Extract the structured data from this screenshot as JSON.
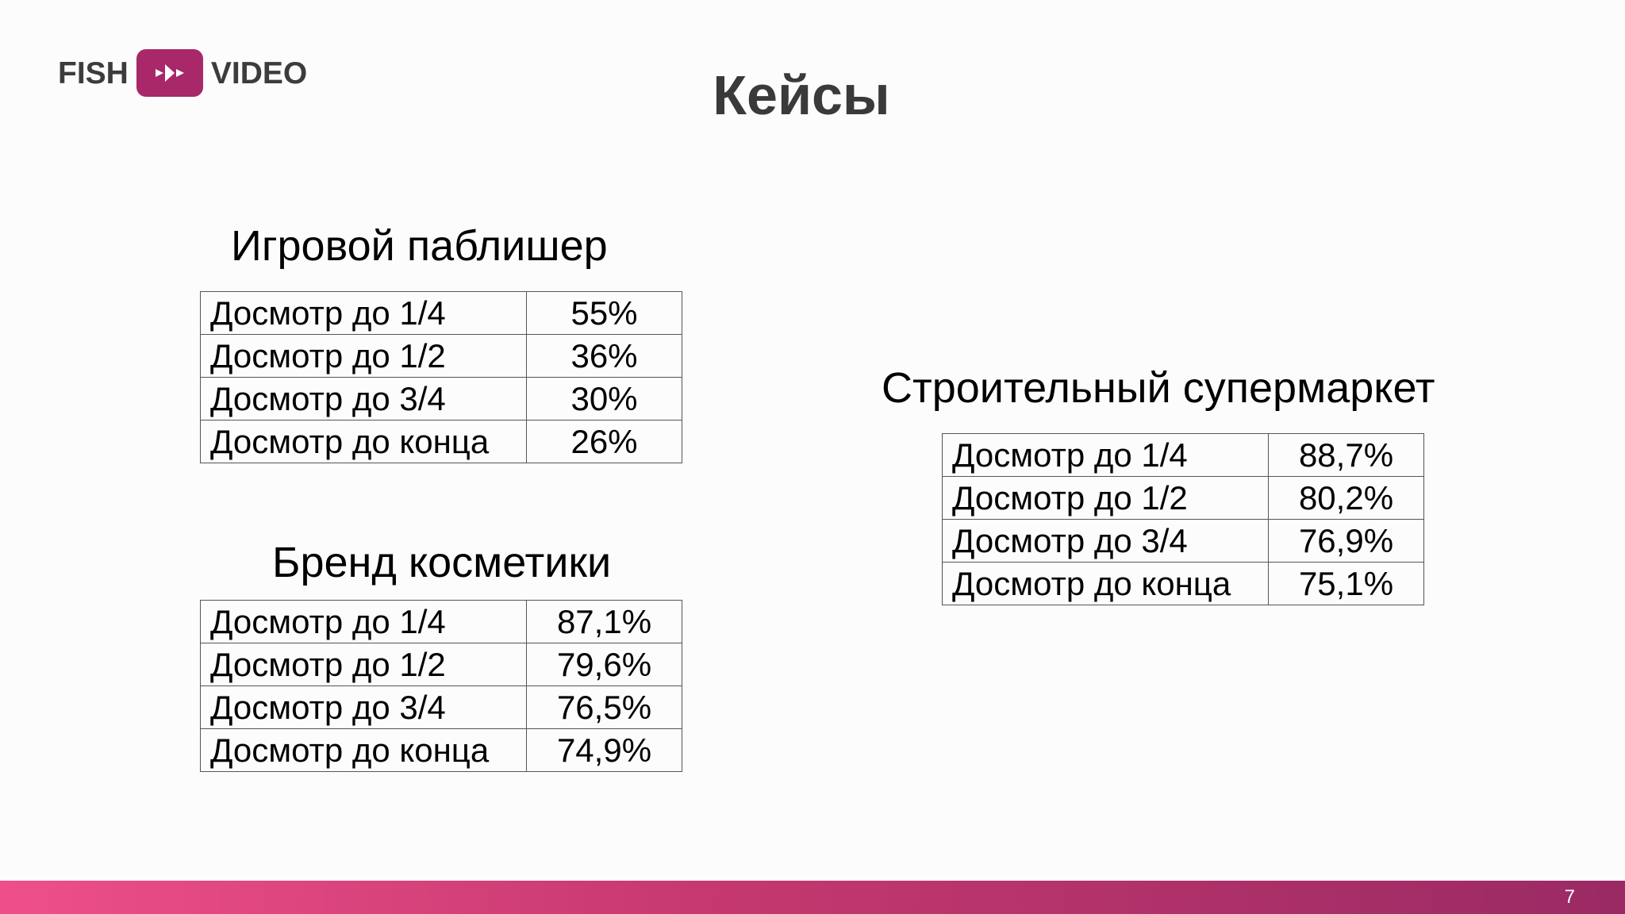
{
  "logo": {
    "left_text": "FISH",
    "right_text": "VIDEO",
    "icon": "play-arrows-icon",
    "badge_color": "#a8286a"
  },
  "title": "Кейсы",
  "cases": [
    {
      "title": "Игровой паблишер",
      "rows": [
        {
          "label": "Досмотр до 1/4",
          "value": "55%"
        },
        {
          "label": "Досмотр до 1/2",
          "value": "36%"
        },
        {
          "label": "Досмотр до 3/4",
          "value": "30%"
        },
        {
          "label": "Досмотр до конца",
          "value": "26%"
        }
      ]
    },
    {
      "title": "Бренд косметики",
      "rows": [
        {
          "label": "Досмотр до 1/4",
          "value": "87,1%"
        },
        {
          "label": "Досмотр до 1/2",
          "value": "79,6%"
        },
        {
          "label": "Досмотр до 3/4",
          "value": "76,5%"
        },
        {
          "label": "Досмотр до конца",
          "value": "74,9%"
        }
      ]
    },
    {
      "title": "Строительный супермаркет",
      "rows": [
        {
          "label": "Досмотр до 1/4",
          "value": "88,7%"
        },
        {
          "label": "Досмотр до 1/2",
          "value": "80,2%"
        },
        {
          "label": "Досмотр до 3/4",
          "value": "76,9%"
        },
        {
          "label": "Досмотр до конца",
          "value": "75,1%"
        }
      ]
    }
  ],
  "page_number": "7",
  "colors": {
    "accent_start": "#ee4f8a",
    "accent_end": "#9a2a64"
  }
}
